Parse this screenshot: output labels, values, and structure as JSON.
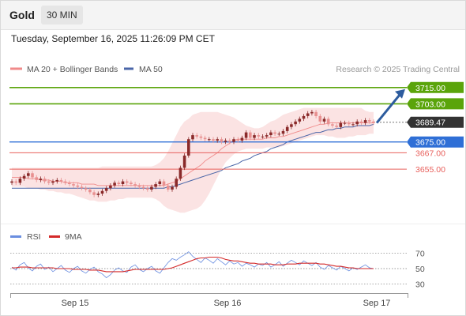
{
  "header": {
    "symbol": "Gold",
    "timeframe": "30 MIN",
    "datetime": "Tuesday, September 16, 2025 11:26:09 PM CET"
  },
  "colors": {
    "resistance": "#5aa40a",
    "support": "#2f6fd6",
    "minor_level": "#e8605c",
    "price": "#333333",
    "ma20": "#f08a8a",
    "bollinger_fill": "#fbe0e0",
    "ma50": "#4a66a8",
    "candle_up": "#8a2a2a",
    "candle_down": "#e89090",
    "rsi": "#6a8ee0",
    "rsi_ma": "#d42a2a",
    "forecast_arrow": "#2d5c9e"
  },
  "chart_data": [
    {
      "type": "candlestick",
      "title": "",
      "legend": [
        {
          "name": "MA 20 + Bollinger Bands",
          "color": "#f08a8a"
        },
        {
          "name": "MA 50",
          "color": "#4a66a8"
        }
      ],
      "legend_position": "top-left",
      "source": "Research © 2025 Trading Central",
      "x_labels": [
        "Sep 15",
        "Sep 16",
        "Sep 17"
      ],
      "y_range": [
        3615,
        3723
      ],
      "grid": false,
      "levels": [
        {
          "label": "3715.00",
          "value": 3715,
          "kind": "resistance"
        },
        {
          "label": "3703.00",
          "value": 3703,
          "kind": "resistance"
        },
        {
          "label": "3689.47",
          "value": 3689.47,
          "kind": "price"
        },
        {
          "label": "3675.00",
          "value": 3675,
          "kind": "support"
        },
        {
          "label": "3667.00",
          "value": 3667,
          "kind": "minor"
        },
        {
          "label": "3655.00",
          "value": 3655,
          "kind": "minor"
        }
      ],
      "forecast_target": 3715,
      "close": [
        3646,
        3645,
        3648,
        3650,
        3652,
        3649,
        3647,
        3648,
        3646,
        3645,
        3646,
        3647,
        3646,
        3645,
        3644,
        3643,
        3642,
        3641,
        3640,
        3638,
        3636,
        3637,
        3639,
        3641,
        3643,
        3645,
        3644,
        3646,
        3645,
        3644,
        3643,
        3642,
        3641,
        3640,
        3642,
        3644,
        3646,
        3643,
        3640,
        3642,
        3648,
        3656,
        3665,
        3677,
        3680,
        3679,
        3678,
        3677,
        3677,
        3676,
        3677,
        3675,
        3676,
        3675,
        3677,
        3676,
        3678,
        3682,
        3678,
        3680,
        3679,
        3679,
        3680,
        3682,
        3681,
        3681,
        3683,
        3686,
        3688,
        3690,
        3692,
        3694,
        3696,
        3697,
        3694,
        3690,
        3692,
        3688,
        3687,
        3686,
        3689,
        3689,
        3688,
        3688,
        3690,
        3689,
        3691,
        3690,
        3689
      ],
      "bollinger_upper": [
        3656,
        3656,
        3656,
        3656,
        3656,
        3656,
        3656,
        3656,
        3656,
        3656,
        3656,
        3656,
        3656,
        3656,
        3656,
        3656,
        3656,
        3656,
        3656,
        3656,
        3656,
        3656,
        3657,
        3657,
        3657,
        3657,
        3657,
        3657,
        3657,
        3657,
        3657,
        3657,
        3657,
        3657,
        3657,
        3658,
        3660,
        3663,
        3668,
        3674,
        3680,
        3686,
        3690,
        3692,
        3695,
        3696,
        3697,
        3697,
        3697,
        3697,
        3697,
        3696,
        3695,
        3694,
        3693,
        3691,
        3689,
        3687,
        3686,
        3685,
        3685,
        3686,
        3688,
        3690,
        3691,
        3693,
        3695,
        3696,
        3697,
        3698,
        3699,
        3700,
        3700,
        3700,
        3700,
        3700,
        3700,
        3700,
        3700,
        3700,
        3700,
        3700,
        3700,
        3700,
        3700,
        3700,
        3698,
        3697,
        3697
      ],
      "ma20": [
        3649,
        3649,
        3649,
        3649,
        3648,
        3648,
        3648,
        3647,
        3647,
        3647,
        3646,
        3646,
        3646,
        3645,
        3645,
        3645,
        3645,
        3644,
        3644,
        3644,
        3644,
        3643,
        3643,
        3643,
        3643,
        3643,
        3643,
        3643,
        3643,
        3643,
        3643,
        3643,
        3643,
        3643,
        3643,
        3643,
        3643,
        3643,
        3644,
        3645,
        3646,
        3648,
        3650,
        3652,
        3654,
        3656,
        3658,
        3661,
        3663,
        3665,
        3667,
        3670,
        3672,
        3674,
        3676,
        3677,
        3677,
        3677,
        3677,
        3677,
        3677,
        3677,
        3678,
        3678,
        3678,
        3679,
        3679,
        3680,
        3681,
        3682,
        3683,
        3684,
        3685,
        3686,
        3687,
        3688,
        3688,
        3689,
        3689,
        3689,
        3689,
        3689,
        3689,
        3689,
        3689,
        3689,
        3689,
        3689,
        3689
      ],
      "bollinger_lower": [
        3642,
        3642,
        3642,
        3642,
        3641,
        3641,
        3641,
        3640,
        3640,
        3639,
        3639,
        3638,
        3638,
        3637,
        3637,
        3636,
        3635,
        3634,
        3633,
        3632,
        3632,
        3631,
        3631,
        3631,
        3632,
        3632,
        3633,
        3633,
        3634,
        3634,
        3634,
        3634,
        3634,
        3634,
        3634,
        3633,
        3631,
        3628,
        3626,
        3625,
        3624,
        3623,
        3623,
        3624,
        3625,
        3626,
        3628,
        3632,
        3637,
        3643,
        3649,
        3655,
        3660,
        3663,
        3666,
        3668,
        3669,
        3670,
        3670,
        3670,
        3670,
        3670,
        3671,
        3671,
        3671,
        3671,
        3672,
        3673,
        3674,
        3675,
        3676,
        3677,
        3678,
        3679,
        3680,
        3680,
        3680,
        3679,
        3679,
        3678,
        3678,
        3678,
        3679,
        3679,
        3680,
        3680,
        3680,
        3681,
        3681
      ],
      "ma50": [
        3641,
        3641,
        3641,
        3641,
        3641,
        3641,
        3641,
        3641,
        3641,
        3641,
        3641,
        3641,
        3641,
        3641,
        3641,
        3641,
        3641,
        3641,
        3641,
        3641,
        3641,
        3641,
        3641,
        3641,
        3641,
        3641,
        3641,
        3641,
        3641,
        3641,
        3641,
        3641,
        3641,
        3641,
        3641,
        3641,
        3641,
        3641,
        3642,
        3642,
        3643,
        3644,
        3645,
        3646,
        3647,
        3648,
        3649,
        3650,
        3651,
        3652,
        3653,
        3654,
        3656,
        3657,
        3658,
        3659,
        3661,
        3662,
        3663,
        3665,
        3666,
        3667,
        3668,
        3670,
        3671,
        3672,
        3673,
        3675,
        3676,
        3677,
        3678,
        3679,
        3680,
        3681,
        3682,
        3682,
        3683,
        3684,
        3684,
        3685,
        3685,
        3686,
        3686,
        3686,
        3687,
        3687,
        3687,
        3687,
        3688
      ]
    },
    {
      "type": "line",
      "title": "",
      "legend": [
        {
          "name": "RSI",
          "color": "#6a8ee0"
        },
        {
          "name": "9MA",
          "color": "#d42a2a"
        }
      ],
      "legend_position": "top-left",
      "y_range": [
        20,
        80
      ],
      "y_ticks": [
        70,
        50,
        30
      ],
      "grid": false,
      "series": [
        {
          "name": "RSI",
          "values": [
            52,
            48,
            55,
            58,
            51,
            47,
            53,
            56,
            49,
            52,
            46,
            50,
            54,
            48,
            45,
            50,
            53,
            47,
            44,
            49,
            52,
            46,
            43,
            38,
            42,
            48,
            51,
            47,
            45,
            52,
            55,
            49,
            46,
            50,
            53,
            47,
            44,
            51,
            58,
            63,
            61,
            65,
            68,
            72,
            66,
            62,
            58,
            64,
            61,
            57,
            63,
            59,
            55,
            60,
            56,
            58,
            53,
            57,
            55,
            52,
            56,
            54,
            58,
            52,
            55,
            59,
            53,
            57,
            61,
            58,
            55,
            60,
            57,
            54,
            58,
            52,
            49,
            54,
            51,
            48,
            53,
            50,
            47,
            51,
            49,
            52,
            55,
            51,
            50
          ]
        },
        {
          "name": "9MA",
          "values": [
            51,
            51,
            52,
            52,
            52,
            51,
            51,
            51,
            51,
            51,
            51,
            50,
            50,
            50,
            50,
            49,
            49,
            49,
            49,
            48,
            48,
            48,
            47,
            46,
            46,
            46,
            46,
            46,
            47,
            48,
            49,
            49,
            49,
            49,
            49,
            49,
            49,
            49,
            50,
            51,
            53,
            55,
            57,
            59,
            61,
            63,
            64,
            64,
            65,
            65,
            65,
            64,
            62,
            61,
            60,
            60,
            59,
            58,
            57,
            57,
            56,
            56,
            56,
            56,
            55,
            55,
            55,
            56,
            56,
            56,
            57,
            57,
            57,
            57,
            57,
            56,
            56,
            55,
            54,
            53,
            53,
            52,
            51,
            51,
            50,
            50,
            50,
            50,
            50
          ]
        }
      ]
    }
  ]
}
